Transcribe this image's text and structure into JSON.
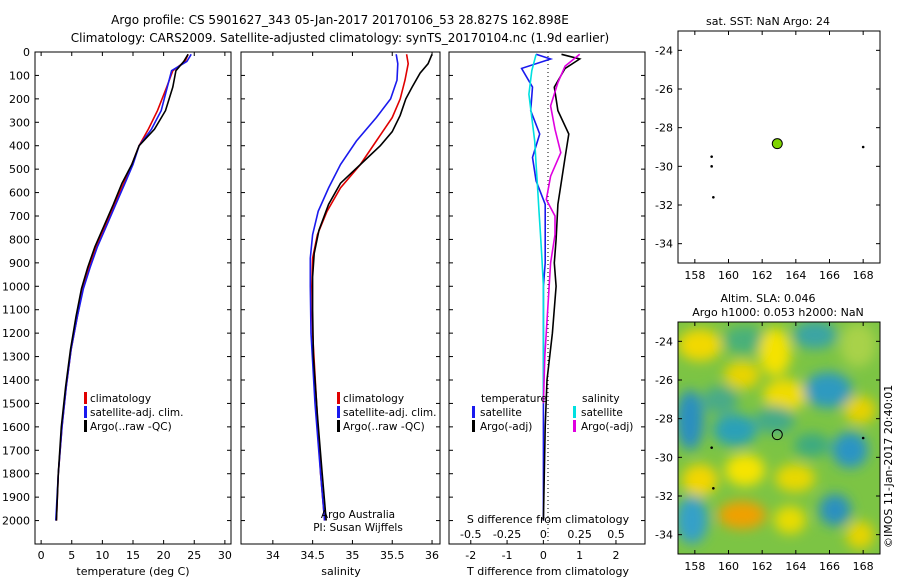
{
  "header": {
    "title_line1": "Argo profile: CS 5901627_343 05-Jan-2017 20170106_53 28.827S 162.898E",
    "title_line2": "Climatology: CARS2009. Satellite-adjusted climatology: synTS_20170104.nc (1.9d earlier)"
  },
  "colors": {
    "climatology": "#e00000",
    "satellite": "#1a1aee",
    "argo": "#000000",
    "sat_salinity": "#00e0e0",
    "argo_salinity": "#e000e0",
    "float_marker": "#7fd400"
  },
  "chart_data": [
    {
      "type": "line",
      "name": "temperature",
      "xlabel": "temperature (deg C)",
      "ylabel": "",
      "xlim": [
        -1,
        31
      ],
      "ylim": [
        2100,
        0
      ],
      "x_ticks": [
        "0",
        "5",
        "10",
        "15",
        "20",
        "25",
        "30"
      ],
      "y_ticks": [
        "0",
        "100",
        "200",
        "300",
        "400",
        "500",
        "600",
        "700",
        "800",
        "900",
        "1000",
        "1100",
        "1200",
        "1300",
        "1400",
        "1500",
        "1600",
        "1700",
        "1800",
        "1900",
        "2000"
      ],
      "legend": [
        "climatology",
        "satellite-adj. clim.",
        "Argo(..raw -QC)"
      ],
      "series": [
        {
          "name": "climatology",
          "color": "#e00000",
          "x": [
            24.0,
            23.5,
            21.5,
            20.5,
            19.0,
            17.5,
            16.0,
            14.8,
            13.5,
            12.0,
            10.5,
            9.0,
            7.8,
            6.8,
            5.9,
            4.9,
            4.1,
            3.4,
            2.8,
            2.5
          ],
          "y": [
            10,
            40,
            80,
            150,
            250,
            330,
            400,
            480,
            560,
            650,
            740,
            830,
            920,
            1010,
            1130,
            1270,
            1430,
            1600,
            1800,
            2000
          ]
        },
        {
          "name": "satellite-adj. clim.",
          "color": "#1a1aee",
          "x": [
            24.5,
            23.8,
            21.3,
            20.6,
            19.6,
            18.0,
            16.0,
            15.0,
            13.7,
            12.2,
            10.7,
            9.2,
            8.0,
            6.9,
            5.9,
            4.9,
            4.1,
            3.4,
            2.8,
            2.4
          ],
          "y": [
            10,
            40,
            80,
            150,
            250,
            330,
            400,
            480,
            560,
            650,
            740,
            830,
            920,
            1010,
            1130,
            1270,
            1430,
            1600,
            1800,
            2000
          ]
        },
        {
          "name": "Argo(..raw -QC)",
          "color": "#000000",
          "x": [
            24.0,
            23.3,
            22.0,
            21.5,
            20.3,
            18.5,
            16.0,
            14.8,
            13.2,
            11.8,
            10.3,
            8.8,
            7.6,
            6.6,
            5.7,
            4.8,
            4.0,
            3.3,
            2.8,
            2.5
          ],
          "y": [
            10,
            40,
            80,
            150,
            250,
            330,
            400,
            480,
            560,
            650,
            740,
            830,
            920,
            1010,
            1130,
            1270,
            1430,
            1600,
            1800,
            2000
          ]
        }
      ]
    },
    {
      "type": "line",
      "name": "salinity",
      "xlabel": "salinity",
      "xlim": [
        33.6,
        36.1
      ],
      "ylim": [
        2100,
        0
      ],
      "x_ticks": [
        "34",
        "34.5",
        "35",
        "35.5",
        "36"
      ],
      "legend": [
        "climatology",
        "satellite-adj. clim.",
        "Argo(..raw -QC)"
      ],
      "annotation": [
        "Argo Australia",
        "PI: Susan Wijffels"
      ],
      "series": [
        {
          "name": "climatology",
          "color": "#e00000",
          "x": [
            35.68,
            35.7,
            35.66,
            35.6,
            35.5,
            35.3,
            35.1,
            34.85,
            34.68,
            34.56,
            34.5,
            34.49,
            34.5,
            34.55,
            34.6,
            34.65
          ],
          "y": [
            10,
            50,
            120,
            200,
            280,
            380,
            480,
            580,
            680,
            780,
            880,
            1000,
            1200,
            1500,
            1800,
            2000
          ]
        },
        {
          "name": "satellite-adj. clim.",
          "color": "#1a1aee",
          "x": [
            35.55,
            35.57,
            35.56,
            35.48,
            35.3,
            35.05,
            34.85,
            34.7,
            34.57,
            34.5,
            34.47,
            34.47,
            34.48,
            34.53,
            34.6,
            34.65
          ],
          "y": [
            10,
            50,
            120,
            200,
            280,
            380,
            480,
            580,
            680,
            780,
            880,
            1000,
            1200,
            1500,
            1800,
            2000
          ]
        },
        {
          "name": "Argo(..raw -QC)",
          "color": "#000000",
          "x": [
            36.0,
            35.95,
            35.85,
            35.75,
            35.67,
            35.6,
            35.5,
            35.35,
            35.1,
            34.85,
            34.7,
            34.58,
            34.52,
            34.5,
            34.5,
            34.51,
            34.56,
            34.62,
            34.67
          ],
          "y": [
            10,
            50,
            90,
            150,
            200,
            270,
            340,
            400,
            480,
            560,
            650,
            760,
            860,
            960,
            1100,
            1300,
            1550,
            1800,
            2000
          ]
        }
      ]
    },
    {
      "type": "line",
      "name": "difference",
      "xlabel": "T difference from climatology",
      "xlabel_top": "S difference from climatology",
      "xlim": [
        -2.6,
        2.8
      ],
      "ylim": [
        2100,
        0
      ],
      "x_ticks": [
        "-2",
        "-1",
        "0",
        "1",
        "2"
      ],
      "x_ticks_top": [
        "-0.5",
        "-0.25",
        "0",
        "0.25",
        "0.5"
      ],
      "legend_headers": [
        "temperature",
        "salinity"
      ],
      "legend": [
        "satellite",
        "Argo(-adj)",
        "satellite",
        "Argo(-adj)"
      ],
      "series": [
        {
          "name": "T satellite",
          "color": "#1a1aee",
          "x": [
            -0.2,
            0.2,
            -0.6,
            -0.3,
            -0.35,
            -0.1,
            -0.3,
            -0.2,
            0.05,
            0.05,
            0.05,
            0.0,
            0.0,
            0.0,
            0.0,
            0.0
          ],
          "y": [
            10,
            30,
            70,
            150,
            250,
            350,
            450,
            550,
            650,
            800,
            900,
            1000,
            1200,
            1400,
            1600,
            2000
          ]
        },
        {
          "name": "T Argo(-adj)",
          "color": "#000000",
          "x": [
            0.5,
            1.0,
            0.6,
            0.3,
            0.4,
            0.7,
            0.6,
            0.5,
            0.4,
            0.35,
            0.3,
            0.35,
            0.25,
            0.1,
            0.05,
            0.0
          ],
          "y": [
            10,
            30,
            70,
            150,
            250,
            350,
            450,
            550,
            650,
            800,
            900,
            1000,
            1200,
            1400,
            1600,
            2000
          ]
        },
        {
          "name": "S satellite",
          "color": "#00e0e0",
          "x": [
            -0.05,
            -0.08,
            -0.1,
            -0.08,
            -0.06,
            -0.05,
            -0.04,
            -0.03,
            -0.02,
            -0.01,
            0.0,
            0.0,
            0.0,
            0.0
          ],
          "y": [
            10,
            80,
            180,
            280,
            380,
            480,
            580,
            680,
            780,
            880,
            1000,
            1200,
            1400,
            1500
          ]
        },
        {
          "name": "S Argo(-adj)",
          "color": "#e000e0",
          "x": [
            0.25,
            0.15,
            0.1,
            0.05,
            0.08,
            0.12,
            0.05,
            0.02,
            0.08,
            0.08,
            0.05,
            0.03,
            0.01,
            0.0
          ],
          "y": [
            10,
            60,
            130,
            230,
            330,
            430,
            530,
            630,
            700,
            780,
            900,
            1100,
            1300,
            1500
          ]
        }
      ]
    },
    {
      "type": "scatter",
      "name": "sst_map",
      "title": "sat. SST: NaN Argo: 24",
      "xlim": [
        157,
        169
      ],
      "ylim": [
        -35,
        -23
      ],
      "x_ticks": [
        "158",
        "160",
        "162",
        "164",
        "166",
        "168"
      ],
      "y_ticks": [
        "-24",
        "-26",
        "-28",
        "-30",
        "-32",
        "-34"
      ],
      "float": {
        "lon": 162.898,
        "lat": -28.827
      },
      "points": [
        {
          "lon": 159.0,
          "lat": -29.5
        },
        {
          "lon": 159.0,
          "lat": -30.0
        },
        {
          "lon": 159.1,
          "lat": -31.6
        },
        {
          "lon": 168.0,
          "lat": -29.0
        }
      ]
    },
    {
      "type": "heatmap",
      "name": "sla_map",
      "title_line1": "Altim. SLA: 0.046",
      "title_line2": "Argo h1000: 0.053 h2000: NaN",
      "xlim": [
        157,
        169
      ],
      "ylim": [
        -35,
        -23
      ],
      "x_ticks": [
        "158",
        "160",
        "162",
        "164",
        "166",
        "168"
      ],
      "y_ticks": [
        "-24",
        "-26",
        "-28",
        "-30",
        "-32",
        "-34"
      ],
      "float": {
        "lon": 162.898,
        "lat": -28.827
      },
      "points": [
        {
          "lon": 159.0,
          "lat": -29.5
        },
        {
          "lon": 159.1,
          "lat": -31.6
        },
        {
          "lon": 168.0,
          "lat": -29.0
        }
      ],
      "credit": "©IMOS 11-Jan-2017 20:40:01"
    }
  ]
}
